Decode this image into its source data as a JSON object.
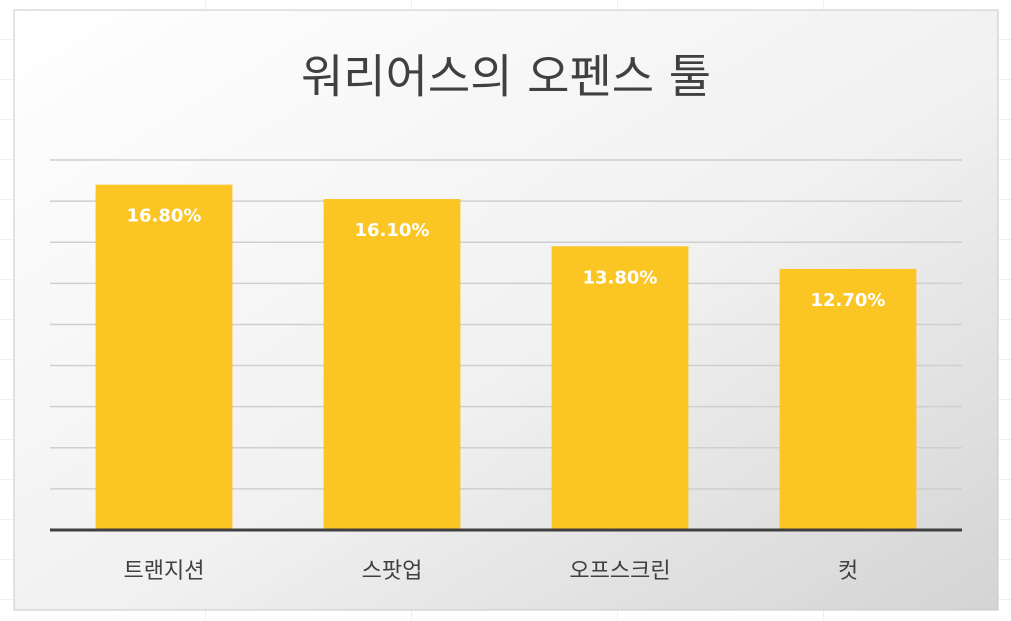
{
  "chart_data": {
    "type": "bar",
    "title": "워리어스의 오펜스 툴",
    "categories": [
      "트랜지션",
      "스팟업",
      "오프스크린",
      "컷"
    ],
    "values": [
      16.8,
      16.1,
      13.8,
      12.7
    ],
    "value_labels": [
      "16.80%",
      "16.10%",
      "13.80%",
      "12.70%"
    ],
    "color": "#fbc523",
    "ylim": [
      0,
      18
    ],
    "yticks": [
      0,
      2,
      4,
      6,
      8,
      10,
      12,
      14,
      16,
      18
    ],
    "grid": true
  }
}
